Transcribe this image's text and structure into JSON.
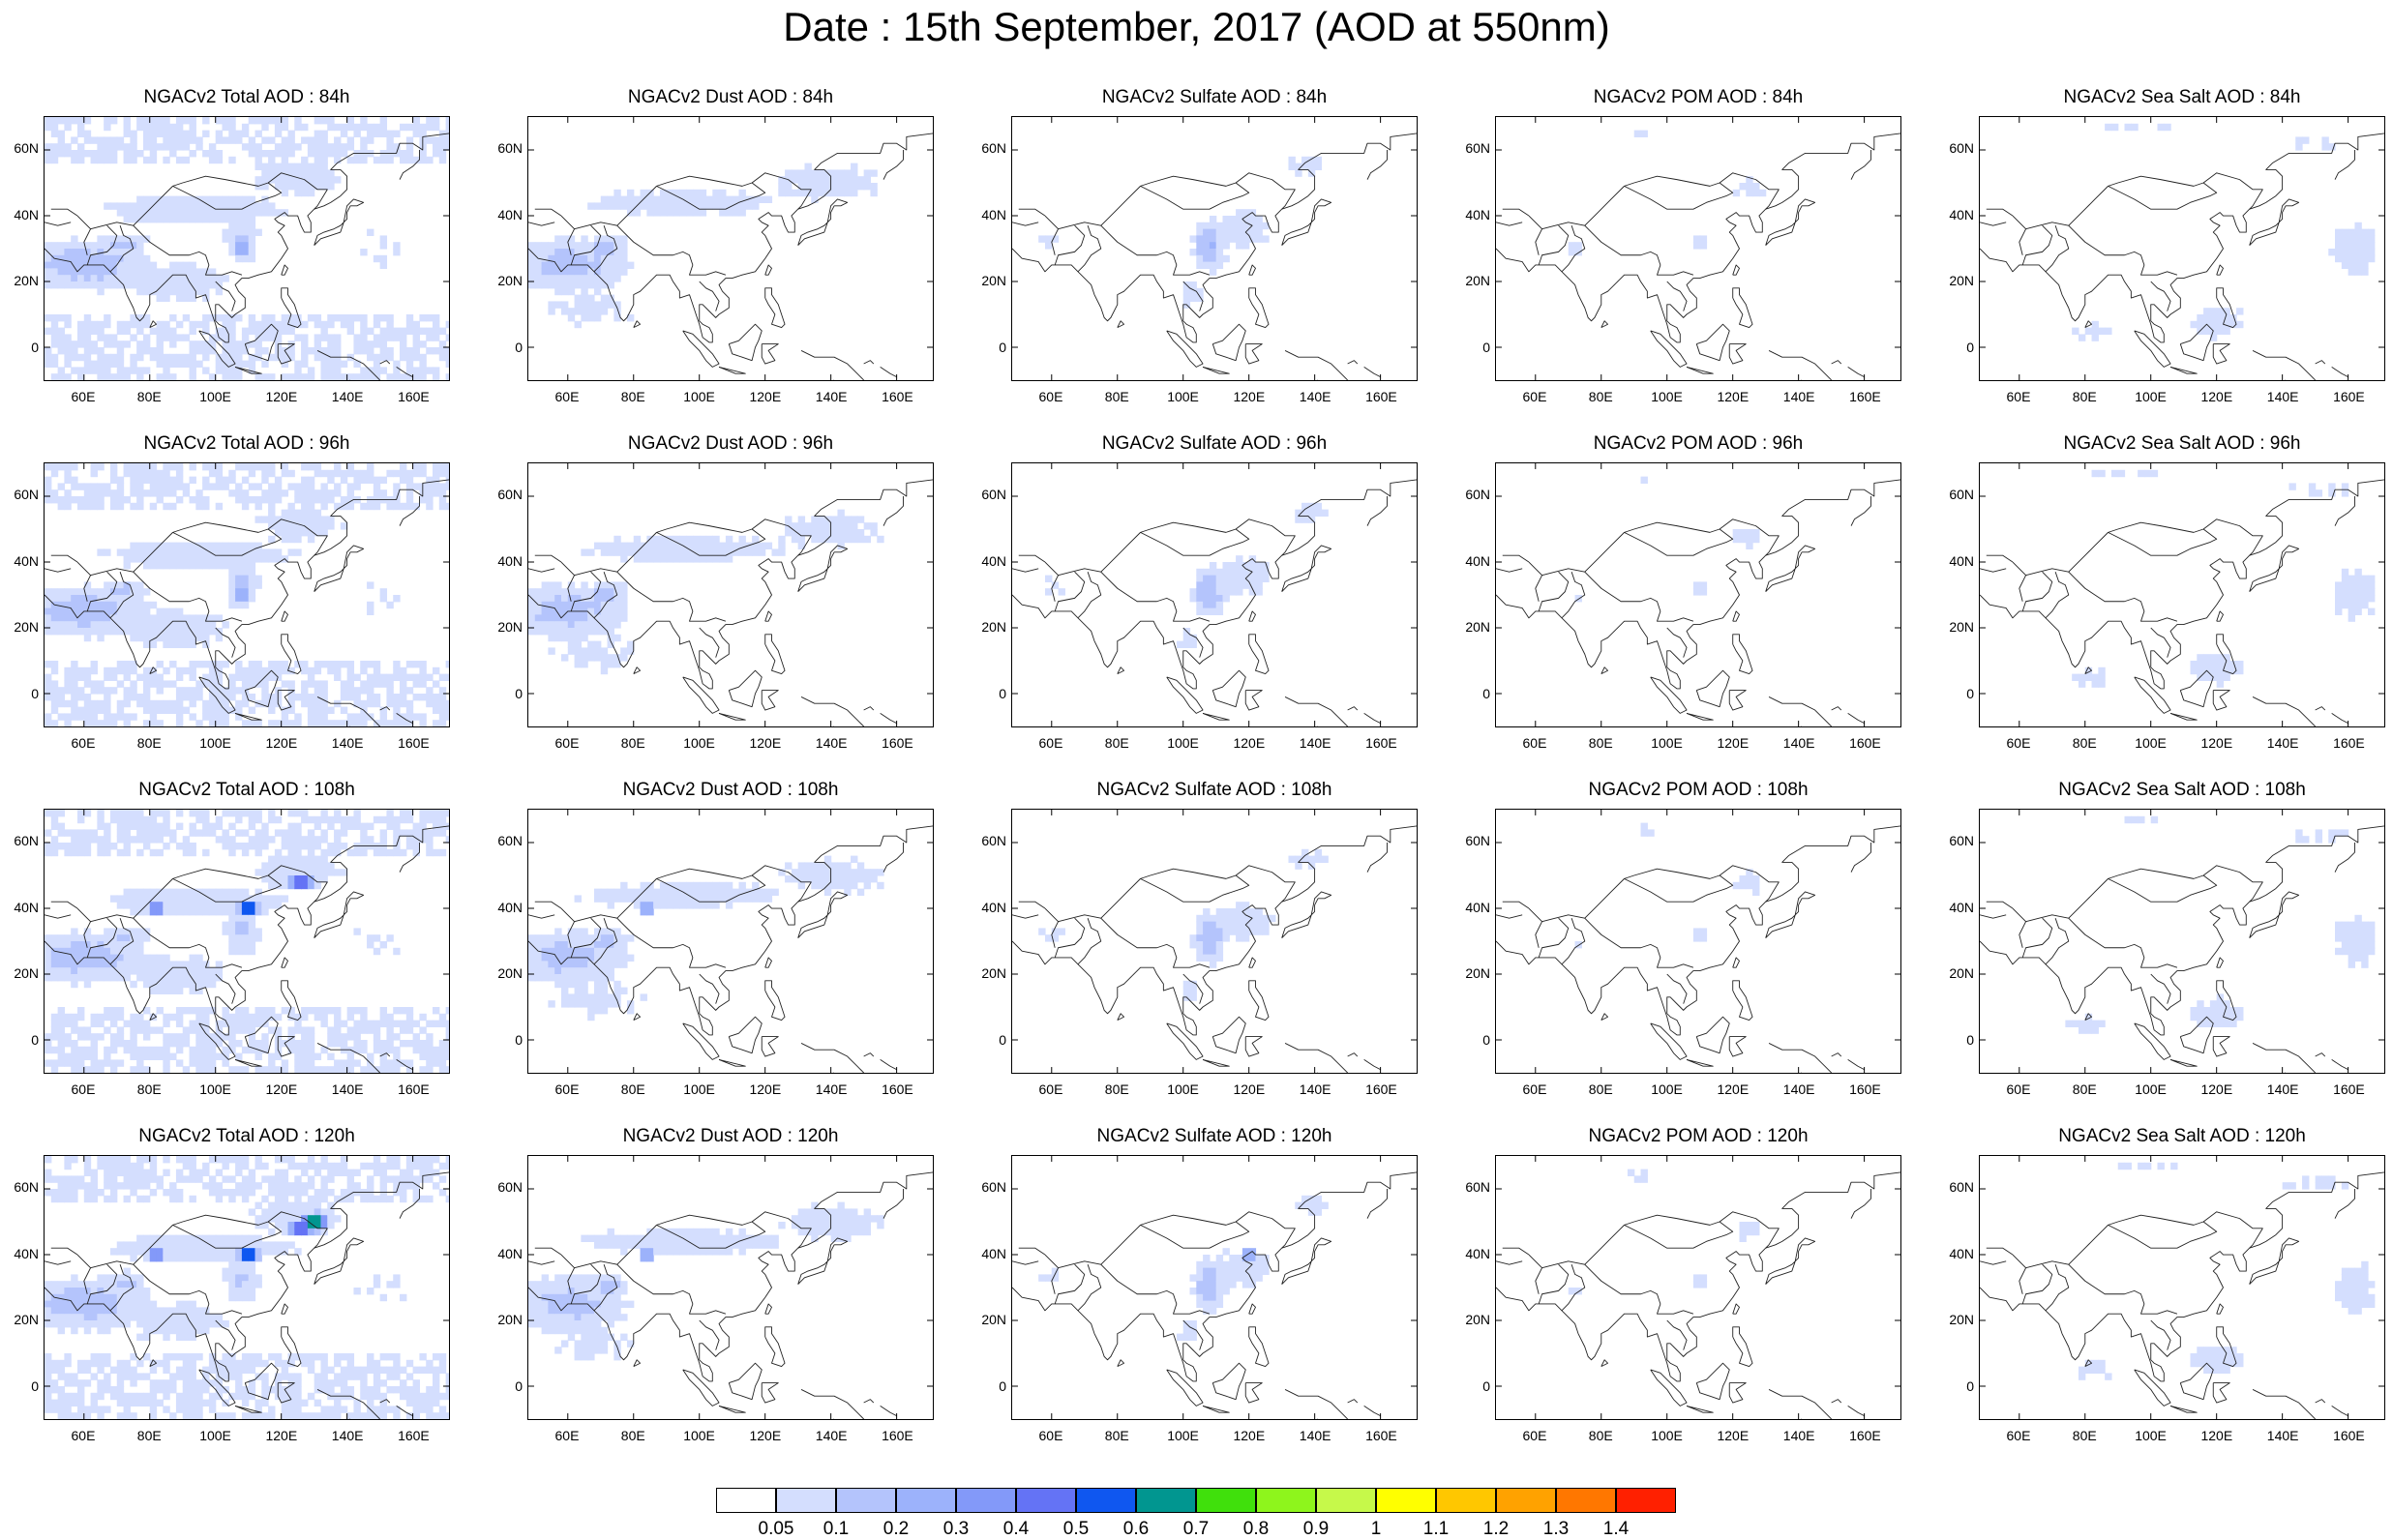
{
  "title": "Date : 15th September, 2017 (AOD at 550nm)",
  "lat_ticks": [
    "60N",
    "40N",
    "20N",
    "0"
  ],
  "lon_ticks": [
    "60E",
    "80E",
    "100E",
    "120E",
    "140E",
    "160E"
  ],
  "panels": [
    [
      {
        "title": "NGACv2 Total AOD : 84h",
        "species": "total",
        "hour": 84
      },
      {
        "title": "NGACv2 Dust AOD : 84h",
        "species": "dust",
        "hour": 84
      },
      {
        "title": "NGACv2 Sulfate AOD : 84h",
        "species": "sulfate",
        "hour": 84
      },
      {
        "title": "NGACv2 POM AOD : 84h",
        "species": "pom",
        "hour": 84
      },
      {
        "title": "NGACv2 Sea Salt AOD : 84h",
        "species": "seasalt",
        "hour": 84
      }
    ],
    [
      {
        "title": "NGACv2 Total AOD : 96h",
        "species": "total",
        "hour": 96
      },
      {
        "title": "NGACv2 Dust AOD : 96h",
        "species": "dust",
        "hour": 96
      },
      {
        "title": "NGACv2 Sulfate AOD : 96h",
        "species": "sulfate",
        "hour": 96
      },
      {
        "title": "NGACv2 POM AOD : 96h",
        "species": "pom",
        "hour": 96
      },
      {
        "title": "NGACv2 Sea Salt AOD : 96h",
        "species": "seasalt",
        "hour": 96
      }
    ],
    [
      {
        "title": "NGACv2 Total AOD : 108h",
        "species": "total",
        "hour": 108
      },
      {
        "title": "NGACv2 Dust AOD : 108h",
        "species": "dust",
        "hour": 108
      },
      {
        "title": "NGACv2 Sulfate AOD : 108h",
        "species": "sulfate",
        "hour": 108
      },
      {
        "title": "NGACv2 POM AOD : 108h",
        "species": "pom",
        "hour": 108
      },
      {
        "title": "NGACv2 Sea Salt AOD : 108h",
        "species": "seasalt",
        "hour": 108
      }
    ],
    [
      {
        "title": "NGACv2 Total AOD : 120h",
        "species": "total",
        "hour": 120
      },
      {
        "title": "NGACv2 Dust AOD : 120h",
        "species": "dust",
        "hour": 120
      },
      {
        "title": "NGACv2 Sulfate AOD : 120h",
        "species": "sulfate",
        "hour": 120
      },
      {
        "title": "NGACv2 POM AOD : 120h",
        "species": "pom",
        "hour": 120
      },
      {
        "title": "NGACv2 Sea Salt  AOD : 120h",
        "species": "seasalt",
        "hour": 120
      }
    ]
  ],
  "colorbar": {
    "colors": [
      "#ffffff",
      "#d4defe",
      "#b4c4fc",
      "#9cb2fb",
      "#8399f9",
      "#6473f5",
      "#0f57f0",
      "#019690",
      "#40e00c",
      "#8ef51c",
      "#c6f94a",
      "#ffff00",
      "#ffc700",
      "#ffa200",
      "#ff7700",
      "#ff2000"
    ],
    "labels": [
      "0.05",
      "0.1",
      "0.2",
      "0.3",
      "0.4",
      "0.5",
      "0.6",
      "0.7",
      "0.8",
      "0.9",
      "1",
      "1.1",
      "1.2",
      "1.3",
      "1.4"
    ]
  }
}
